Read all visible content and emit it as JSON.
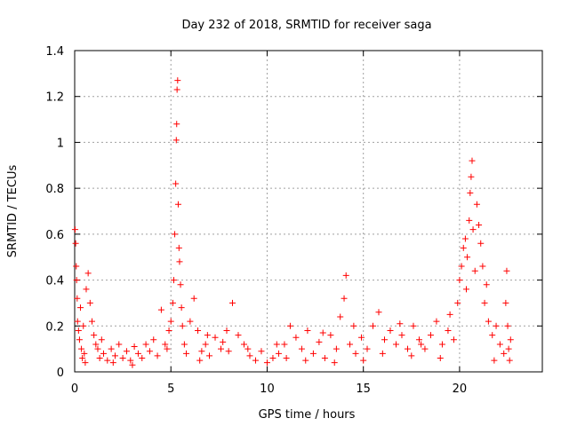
{
  "chart_data": {
    "type": "scatter",
    "title": "Day 232 of 2018, SRMTID for receiver saga",
    "xlabel": "GPS time / hours",
    "ylabel": "SRMTID / TECUs",
    "xlim": [
      0,
      24.3
    ],
    "ylim": [
      0,
      1.4
    ],
    "x_ticks": [
      0,
      5,
      10,
      15,
      20
    ],
    "x_tick_labels": [
      "0",
      "5",
      "10",
      "15",
      "20"
    ],
    "y_ticks": [
      0,
      0.2,
      0.4,
      0.6,
      0.8,
      1.0,
      1.2,
      1.4
    ],
    "y_tick_labels": [
      "0",
      "0.2",
      "0.4",
      "0.6",
      "0.8",
      "1",
      "1.2",
      "1.4"
    ],
    "grid": true,
    "marker": "plus",
    "series": [
      {
        "name": "SRMTID",
        "color": "#ff0000",
        "points": [
          [
            0.02,
            0.62
          ],
          [
            0.05,
            0.56
          ],
          [
            0.08,
            0.46
          ],
          [
            0.1,
            0.4
          ],
          [
            0.13,
            0.32
          ],
          [
            0.15,
            0.22
          ],
          [
            0.2,
            0.18
          ],
          [
            0.25,
            0.14
          ],
          [
            0.3,
            0.28
          ],
          [
            0.35,
            0.1
          ],
          [
            0.4,
            0.06
          ],
          [
            0.45,
            0.2
          ],
          [
            0.5,
            0.08
          ],
          [
            0.6,
            0.36
          ],
          [
            0.7,
            0.43
          ],
          [
            0.8,
            0.3
          ],
          [
            0.9,
            0.22
          ],
          [
            1.0,
            0.16
          ],
          [
            1.1,
            0.12
          ],
          [
            1.2,
            0.1
          ],
          [
            1.3,
            0.06
          ],
          [
            1.5,
            0.08
          ],
          [
            1.7,
            0.05
          ],
          [
            1.9,
            0.1
          ],
          [
            2.1,
            0.07
          ],
          [
            2.3,
            0.12
          ],
          [
            2.5,
            0.06
          ],
          [
            2.7,
            0.09
          ],
          [
            2.9,
            0.05
          ],
          [
            3.1,
            0.11
          ],
          [
            3.3,
            0.08
          ],
          [
            3.5,
            0.06
          ],
          [
            3.7,
            0.12
          ],
          [
            3.9,
            0.09
          ],
          [
            4.1,
            0.14
          ],
          [
            4.3,
            0.07
          ],
          [
            4.5,
            0.27
          ],
          [
            4.7,
            0.12
          ],
          [
            4.9,
            0.18
          ],
          [
            5.0,
            0.22
          ],
          [
            5.1,
            0.3
          ],
          [
            5.15,
            0.4
          ],
          [
            5.2,
            0.6
          ],
          [
            5.25,
            0.82
          ],
          [
            5.28,
            1.01
          ],
          [
            5.3,
            1.08
          ],
          [
            5.32,
            1.23
          ],
          [
            5.35,
            1.27
          ],
          [
            5.38,
            0.73
          ],
          [
            5.42,
            0.54
          ],
          [
            5.45,
            0.48
          ],
          [
            5.5,
            0.38
          ],
          [
            5.6,
            0.2
          ],
          [
            5.7,
            0.12
          ],
          [
            5.8,
            0.08
          ],
          [
            6.0,
            0.22
          ],
          [
            6.2,
            0.32
          ],
          [
            6.4,
            0.18
          ],
          [
            6.6,
            0.09
          ],
          [
            6.8,
            0.12
          ],
          [
            7.0,
            0.07
          ],
          [
            7.3,
            0.15
          ],
          [
            7.6,
            0.1
          ],
          [
            7.9,
            0.18
          ],
          [
            8.2,
            0.3
          ],
          [
            8.5,
            0.16
          ],
          [
            8.8,
            0.12
          ],
          [
            9.1,
            0.07
          ],
          [
            9.4,
            0.05
          ],
          [
            9.7,
            0.09
          ],
          [
            10.0,
            0.04
          ],
          [
            10.3,
            0.06
          ],
          [
            10.6,
            0.08
          ],
          [
            10.9,
            0.12
          ],
          [
            11.2,
            0.2
          ],
          [
            11.5,
            0.15
          ],
          [
            11.8,
            0.1
          ],
          [
            12.1,
            0.18
          ],
          [
            12.4,
            0.08
          ],
          [
            12.7,
            0.13
          ],
          [
            13.0,
            0.06
          ],
          [
            13.3,
            0.16
          ],
          [
            13.6,
            0.1
          ],
          [
            13.8,
            0.24
          ],
          [
            14.0,
            0.32
          ],
          [
            14.1,
            0.42
          ],
          [
            14.3,
            0.12
          ],
          [
            14.6,
            0.08
          ],
          [
            14.9,
            0.15
          ],
          [
            15.2,
            0.1
          ],
          [
            15.5,
            0.2
          ],
          [
            15.8,
            0.26
          ],
          [
            16.1,
            0.14
          ],
          [
            16.4,
            0.18
          ],
          [
            16.7,
            0.12
          ],
          [
            17.0,
            0.16
          ],
          [
            17.3,
            0.1
          ],
          [
            17.6,
            0.2
          ],
          [
            17.9,
            0.14
          ],
          [
            18.2,
            0.1
          ],
          [
            18.5,
            0.16
          ],
          [
            18.8,
            0.22
          ],
          [
            19.1,
            0.12
          ],
          [
            19.4,
            0.18
          ],
          [
            19.7,
            0.14
          ],
          [
            19.9,
            0.3
          ],
          [
            20.0,
            0.4
          ],
          [
            20.1,
            0.46
          ],
          [
            20.2,
            0.54
          ],
          [
            20.3,
            0.58
          ],
          [
            20.4,
            0.5
          ],
          [
            20.5,
            0.66
          ],
          [
            20.55,
            0.78
          ],
          [
            20.6,
            0.85
          ],
          [
            20.65,
            0.92
          ],
          [
            20.7,
            0.62
          ],
          [
            20.8,
            0.44
          ],
          [
            20.9,
            0.73
          ],
          [
            21.0,
            0.64
          ],
          [
            21.1,
            0.56
          ],
          [
            21.2,
            0.46
          ],
          [
            21.3,
            0.3
          ],
          [
            21.5,
            0.22
          ],
          [
            21.7,
            0.16
          ],
          [
            21.9,
            0.2
          ],
          [
            22.1,
            0.12
          ],
          [
            22.3,
            0.08
          ],
          [
            22.4,
            0.3
          ],
          [
            22.45,
            0.44
          ],
          [
            22.5,
            0.2
          ],
          [
            22.55,
            0.1
          ],
          [
            22.6,
            0.05
          ],
          [
            22.65,
            0.14
          ],
          [
            2.0,
            0.04
          ],
          [
            3.0,
            0.03
          ],
          [
            6.5,
            0.05
          ],
          [
            8.0,
            0.09
          ],
          [
            9.0,
            0.1
          ],
          [
            11.0,
            0.06
          ],
          [
            12.0,
            0.05
          ],
          [
            13.5,
            0.04
          ],
          [
            15.0,
            0.05
          ],
          [
            16.0,
            0.08
          ],
          [
            17.5,
            0.07
          ],
          [
            19.0,
            0.06
          ],
          [
            21.8,
            0.05
          ],
          [
            4.8,
            0.1
          ],
          [
            6.9,
            0.16
          ],
          [
            10.5,
            0.12
          ],
          [
            14.5,
            0.2
          ],
          [
            18.0,
            0.12
          ],
          [
            19.5,
            0.25
          ],
          [
            20.35,
            0.36
          ],
          [
            21.4,
            0.38
          ],
          [
            0.55,
            0.04
          ],
          [
            1.4,
            0.14
          ],
          [
            5.55,
            0.28
          ],
          [
            7.7,
            0.13
          ],
          [
            12.9,
            0.17
          ],
          [
            16.9,
            0.21
          ]
        ]
      }
    ]
  }
}
